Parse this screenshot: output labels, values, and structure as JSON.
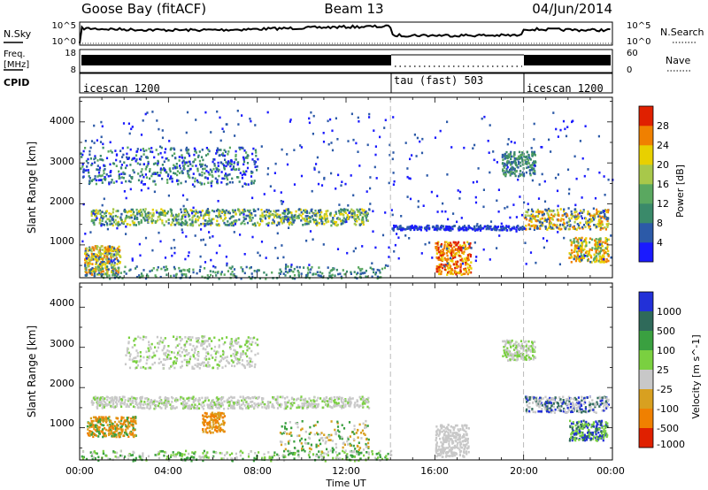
{
  "header": {
    "station": "Goose Bay (fitACF)",
    "beam": "Beam 13",
    "date": "04/Jun/2014"
  },
  "colors": {
    "power_scale": [
      "#1a1aff",
      "#2c5aa8",
      "#3a8a6a",
      "#5aa860",
      "#a8c84a",
      "#e8d000",
      "#f08000",
      "#e02000"
    ],
    "velocity_scale": [
      "#2230d8",
      "#2f6a5a",
      "#3aa040",
      "#7ad040",
      "#c8c8c8",
      "#d8a020",
      "#f08000",
      "#e02000"
    ]
  },
  "chart_data": [
    {
      "type": "line",
      "name": "noise",
      "left_label": "N.Sky",
      "left_ticks": [
        "10^5",
        "10^0"
      ],
      "right_label": "N.Search",
      "right_ticks": [
        "10^5",
        "10^0"
      ],
      "xlim": [
        0,
        24
      ]
    },
    {
      "type": "line",
      "name": "frequency-nave",
      "left_label_top": "Freq.",
      "left_label_bottom": "[MHz]",
      "left_ticks": [
        "18",
        "8"
      ],
      "right_label": "Nave",
      "right_ticks": [
        "60",
        "0"
      ],
      "xlim": [
        0,
        24
      ]
    },
    {
      "type": "table",
      "name": "cpid",
      "label": "CPID",
      "segments": [
        {
          "label": "icescan 1200",
          "start": 0,
          "end": 14
        },
        {
          "label": "tau (fast) 503",
          "start": 14,
          "end": 20
        },
        {
          "label": "icescan 1200",
          "start": 20,
          "end": 24
        }
      ]
    },
    {
      "type": "heatmap",
      "name": "power",
      "ylabel": "Slant Range [km]",
      "ylim": [
        200,
        4600
      ],
      "yticks": [
        "4000",
        "3000",
        "2000",
        "1000"
      ],
      "xlim": [
        0,
        24
      ],
      "colorbar_label": "Power [dB]",
      "colorbar_ticks": [
        "28",
        "24",
        "20",
        "16",
        "12",
        "8",
        "4"
      ]
    },
    {
      "type": "heatmap",
      "name": "velocity",
      "ylabel": "Slant Range [km]",
      "ylim": [
        200,
        4600
      ],
      "yticks": [
        "4000",
        "3000",
        "2000",
        "1000"
      ],
      "xlim": [
        0,
        24
      ],
      "xticks": [
        "00:00",
        "04:00",
        "08:00",
        "12:00",
        "16:00",
        "20:00",
        "00:00"
      ],
      "xlabel": "Time UT",
      "colorbar_label": "Velocity [m s^-1]",
      "colorbar_ticks": [
        "1000",
        "500",
        "100",
        "25",
        "-25",
        "-100",
        "-500",
        "-1000"
      ]
    }
  ]
}
